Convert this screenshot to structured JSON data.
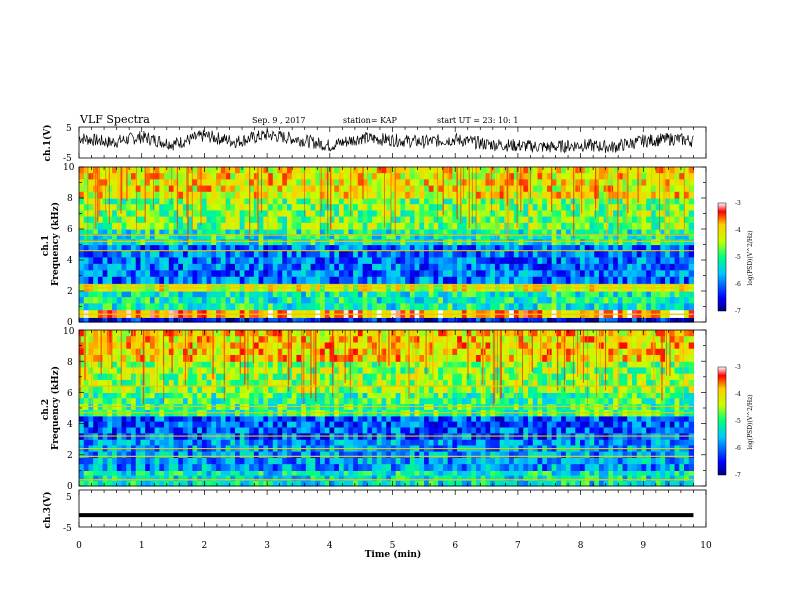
{
  "header": {
    "title": "VLF Spectra",
    "date": "Sep. 9 , 2017",
    "station": "station= KAP",
    "start": "start UT =  23: 10: 1"
  },
  "colors": {
    "trace": "#000000",
    "colormap": [
      "#000080",
      "#0000ff",
      "#00c8ff",
      "#00ff80",
      "#c8ff00",
      "#ffcc00",
      "#ff0000",
      "#ffffff"
    ]
  },
  "chart_data": [
    {
      "type": "line",
      "panel": "ch1-waveform",
      "ylabel": "ch.1(V)",
      "ylim": [
        -5,
        5
      ],
      "yticks": [
        "5",
        "-5"
      ],
      "xlim": [
        0,
        10
      ],
      "x": [
        0,
        0.5,
        1,
        1.5,
        2,
        2.5,
        3,
        3.5,
        4,
        4.5,
        5,
        5.5,
        6,
        6.5,
        7,
        7.5,
        8,
        8.5,
        9,
        9.5,
        9.8
      ],
      "values": [
        1.5,
        0,
        1.8,
        -0.5,
        2.2,
        0.3,
        2.5,
        1.0,
        -1.0,
        1.5,
        0.8,
        0.2,
        1.0,
        -0.5,
        -1.0,
        -1.5,
        -0.8,
        -1.5,
        0.5,
        1.2,
        0.5
      ]
    },
    {
      "type": "heatmap",
      "panel": "ch1-spectrogram",
      "ylabel": "ch.1\nFrequency (kHz)",
      "yticks": [
        "0",
        "2",
        "4",
        "6",
        "8",
        "10"
      ],
      "ylim": [
        0,
        10
      ],
      "xlim": [
        0,
        10
      ],
      "colorbar": {
        "label": "log(PSD)(V^2/Hz)",
        "ticks": [
          "-3",
          "-4",
          "-5",
          "-6",
          "-7"
        ],
        "range": [
          -7,
          -3
        ]
      },
      "bands_khz": [
        {
          "f0": 0,
          "f1": 0.3,
          "level": -6.5
        },
        {
          "f0": 0.3,
          "f1": 0.8,
          "level": -3.6
        },
        {
          "f0": 0.8,
          "f1": 2.0,
          "level": -5.2
        },
        {
          "f0": 2.0,
          "f1": 2.5,
          "level": -4.3
        },
        {
          "f0": 2.5,
          "f1": 5.0,
          "level": -6.0
        },
        {
          "f0": 5.0,
          "f1": 6.0,
          "level": -5.2
        },
        {
          "f0": 6.0,
          "f1": 8.0,
          "level": -4.7
        },
        {
          "f0": 8.0,
          "f1": 10.0,
          "level": -4.1
        }
      ],
      "lines_khz": [
        0.5,
        2.2,
        2.4,
        4.6,
        5.2,
        5.6
      ]
    },
    {
      "type": "heatmap",
      "panel": "ch2-spectrogram",
      "ylabel": "ch.2\nFrequency (kHz)",
      "yticks": [
        "0",
        "2",
        "4",
        "6",
        "8",
        "10"
      ],
      "ylim": [
        0,
        10
      ],
      "xlim": [
        0,
        10
      ],
      "colorbar": {
        "label": "log(PSD)(V^2/Hz)",
        "ticks": [
          "-3",
          "-4",
          "-5",
          "-6",
          "-7"
        ],
        "range": [
          -7,
          -3
        ]
      },
      "bands_khz": [
        {
          "f0": 0,
          "f1": 1.0,
          "level": -5.3
        },
        {
          "f0": 1.0,
          "f1": 3.0,
          "level": -5.8
        },
        {
          "f0": 3.0,
          "f1": 4.5,
          "level": -6.1
        },
        {
          "f0": 4.5,
          "f1": 6.0,
          "level": -5.0
        },
        {
          "f0": 6.0,
          "f1": 8.0,
          "level": -4.6
        },
        {
          "f0": 8.0,
          "f1": 10.0,
          "level": -4.0
        }
      ],
      "lines_khz": [
        0.4,
        1.9,
        2.4,
        3.2,
        4.7,
        5.1,
        6.4
      ]
    },
    {
      "type": "line",
      "panel": "ch3-waveform",
      "ylabel": "ch.3(V)",
      "ylim": [
        -5,
        5
      ],
      "yticks": [
        "5",
        "-5"
      ],
      "xlim": [
        0,
        10
      ],
      "x": [
        0,
        9.8
      ],
      "values": [
        -1.8,
        -1.8
      ]
    }
  ],
  "xaxis": {
    "label": "Time (min)",
    "ticks": [
      "0",
      "1",
      "2",
      "3",
      "4",
      "5",
      "6",
      "7",
      "8",
      "9",
      "10"
    ]
  }
}
